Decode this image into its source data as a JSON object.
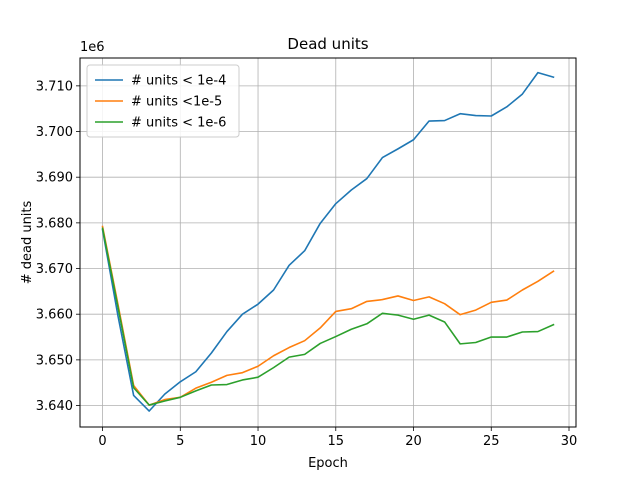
{
  "chart_data": {
    "type": "line",
    "title": "Dead units",
    "xlabel": "Epoch",
    "ylabel": "# dead units",
    "y_offset_label": "1e6",
    "xlim": [
      -1.45,
      30.45
    ],
    "ylim": [
      3.6353,
      3.7161
    ],
    "xticks": [
      0,
      5,
      10,
      15,
      20,
      25,
      30
    ],
    "xtick_labels": [
      "0",
      "5",
      "10",
      "15",
      "20",
      "25",
      "30"
    ],
    "yticks": [
      3.64,
      3.65,
      3.66,
      3.67,
      3.68,
      3.69,
      3.7,
      3.71
    ],
    "ytick_labels": [
      "3.640",
      "3.650",
      "3.660",
      "3.670",
      "3.680",
      "3.690",
      "3.700",
      "3.710"
    ],
    "grid": true,
    "legend_position": "top-left",
    "x": [
      0,
      1,
      2,
      3,
      4,
      5,
      6,
      7,
      8,
      9,
      10,
      11,
      12,
      13,
      14,
      15,
      16,
      17,
      18,
      19,
      20,
      21,
      22,
      23,
      24,
      25,
      26,
      27,
      28,
      29
    ],
    "series": [
      {
        "name": "# units < 1e-4",
        "color": "#1f77b4",
        "values": [
          3.6785,
          3.6595,
          3.6422,
          3.6388,
          3.6425,
          3.6452,
          3.6474,
          3.6515,
          3.6562,
          3.66,
          3.6622,
          3.6653,
          3.6707,
          3.6739,
          3.6799,
          3.6842,
          3.6872,
          3.6897,
          3.6943,
          3.6962,
          3.6982,
          3.7023,
          3.7024,
          3.7039,
          3.7035,
          3.7034,
          3.7054,
          3.7082,
          3.7129,
          3.7119
        ]
      },
      {
        "name": "# units <1e-5",
        "color": "#ff7f0e",
        "values": [
          3.6792,
          3.662,
          3.6444,
          3.6401,
          3.6413,
          3.6418,
          3.6438,
          3.6451,
          3.6466,
          3.6472,
          3.6486,
          3.6509,
          3.6527,
          3.6542,
          3.657,
          3.6606,
          3.6612,
          3.6628,
          3.6632,
          3.664,
          3.663,
          3.6638,
          3.6623,
          3.6599,
          3.6609,
          3.6626,
          3.6631,
          3.6653,
          3.6672,
          3.6694
        ]
      },
      {
        "name": "# units < 1e-6",
        "color": "#2ca02c",
        "values": [
          3.6788,
          3.6614,
          3.6439,
          3.6401,
          3.641,
          3.6418,
          3.6432,
          3.6445,
          3.6446,
          3.6456,
          3.6462,
          3.6483,
          3.6506,
          3.6512,
          3.6536,
          3.6551,
          3.6567,
          3.6579,
          3.6602,
          3.6598,
          3.6589,
          3.6598,
          3.6583,
          3.6535,
          3.6538,
          3.655,
          3.655,
          3.6561,
          3.6562,
          3.6577
        ]
      }
    ]
  }
}
